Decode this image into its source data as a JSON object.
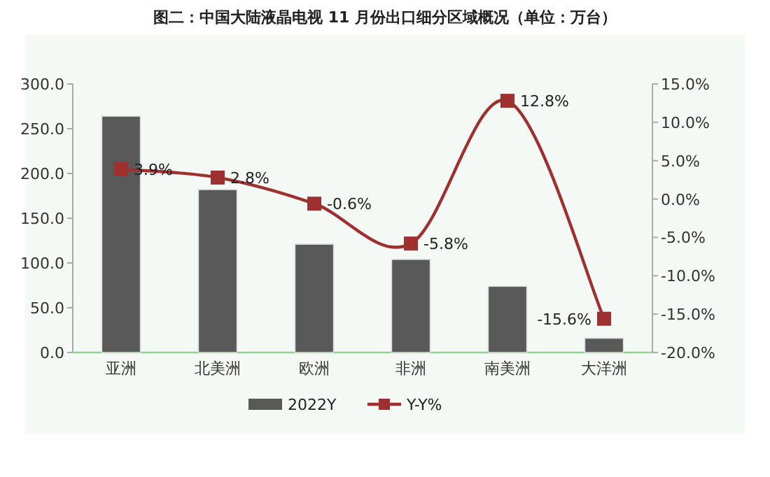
{
  "chart_data": {
    "type": "bar",
    "title": "图二：中国大陆液晶电视 11 月份出口细分区域概况（单位：万台）",
    "categories": [
      "亚洲",
      "北美洲",
      "欧洲",
      "非洲",
      "南美洲",
      "大洋洲"
    ],
    "series": [
      {
        "name": "2022Y",
        "color": "#595959",
        "values": [
          264,
          182,
          121,
          104,
          74,
          16
        ]
      },
      {
        "name": "Y-Y%",
        "type": "line",
        "axis": "y2",
        "color": "#9e3030",
        "values": [
          3.9,
          2.8,
          -0.6,
          -5.8,
          12.8,
          -15.6
        ],
        "value_labels": [
          "3.9%",
          "2.8%",
          "-0.6%",
          "-5.8%",
          "12.8%",
          "-15.6%"
        ]
      }
    ],
    "ylim": [
      0,
      300
    ],
    "yticks": [
      {
        "value": 0,
        "label": "0.0"
      },
      {
        "value": 50,
        "label": "50.0"
      },
      {
        "value": 100,
        "label": "100.0"
      },
      {
        "value": 150,
        "label": "150.0"
      },
      {
        "value": 200,
        "label": "200.0"
      },
      {
        "value": 250,
        "label": "250.0"
      },
      {
        "value": 300,
        "label": "300.0"
      }
    ],
    "y2lim": [
      -20,
      15
    ],
    "y2ticks": [
      {
        "value": -20,
        "label": "-20.0%"
      },
      {
        "value": -15,
        "label": "-15.0%"
      },
      {
        "value": -10,
        "label": "-10.0%"
      },
      {
        "value": -5,
        "label": "-5.0%"
      },
      {
        "value": 0,
        "label": "0.0%"
      },
      {
        "value": 5,
        "label": "5.0%"
      },
      {
        "value": 10,
        "label": "10.0%"
      },
      {
        "value": 15,
        "label": "15.0%"
      }
    ],
    "legend": "bottom",
    "marker": "square"
  }
}
